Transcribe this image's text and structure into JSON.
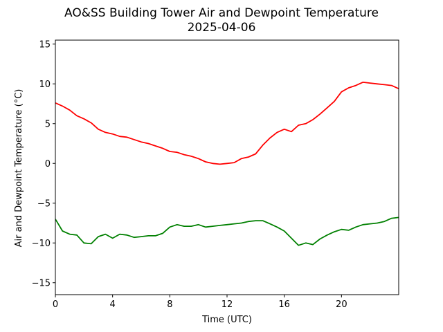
{
  "chart_data": {
    "type": "line",
    "title": "AO&SS Building Tower Air and Dewpoint Temperature",
    "subtitle": "2025-04-06",
    "xlabel": "Time (UTC)",
    "ylabel": "Air and Dewpoint Temperature (°C)",
    "xlim": [
      0,
      24
    ],
    "ylim": [
      -16.5,
      15.5
    ],
    "xticks": [
      0,
      4,
      8,
      12,
      16,
      20
    ],
    "xtick_labels": [
      "0",
      "4",
      "8",
      "12",
      "16",
      "20"
    ],
    "yticks": [
      -15,
      -10,
      -5,
      0,
      5,
      10,
      15
    ],
    "ytick_labels": [
      "−15",
      "−10",
      "−5",
      "0",
      "5",
      "10",
      "15"
    ],
    "grid": false,
    "series": [
      {
        "color": "#ff0000",
        "x": [
          0,
          0.5,
          1,
          1.5,
          2,
          2.5,
          3,
          3.5,
          4,
          4.5,
          5,
          5.5,
          6,
          6.5,
          7,
          7.5,
          8,
          8.5,
          9,
          9.5,
          10,
          10.5,
          11,
          11.5,
          12,
          12.5,
          13,
          13.5,
          14,
          14.5,
          15,
          15.5,
          16,
          16.5,
          17,
          17.5,
          18,
          18.5,
          19,
          19.5,
          20,
          20.5,
          21,
          21.5,
          22,
          22.5,
          23,
          23.5,
          24
        ],
        "y": [
          7.6,
          7.2,
          6.7,
          6.0,
          5.6,
          5.1,
          4.3,
          3.9,
          3.7,
          3.4,
          3.3,
          3.0,
          2.7,
          2.5,
          2.2,
          1.9,
          1.5,
          1.4,
          1.1,
          0.9,
          0.6,
          0.2,
          0.0,
          -0.1,
          0.0,
          0.1,
          0.6,
          0.8,
          1.2,
          2.3,
          3.2,
          3.9,
          4.3,
          4.0,
          4.8,
          5.0,
          5.5,
          6.2,
          7.0,
          7.8,
          9.0,
          9.5,
          9.8,
          10.2,
          10.1,
          10.0,
          9.9,
          9.8,
          9.4
        ]
      },
      {
        "color": "#008000",
        "x": [
          0,
          0.5,
          1,
          1.5,
          2,
          2.5,
          3,
          3.5,
          4,
          4.5,
          5,
          5.5,
          6,
          6.5,
          7,
          7.5,
          8,
          8.5,
          9,
          9.5,
          10,
          10.5,
          11,
          11.5,
          12,
          12.5,
          13,
          13.5,
          14,
          14.5,
          15,
          15.5,
          16,
          16.5,
          17,
          17.5,
          18,
          18.5,
          19,
          19.5,
          20,
          20.5,
          21,
          21.5,
          22,
          22.5,
          23,
          23.5,
          24
        ],
        "y": [
          -7.0,
          -8.5,
          -8.9,
          -9.0,
          -10.0,
          -10.1,
          -9.2,
          -8.9,
          -9.4,
          -8.9,
          -9.0,
          -9.3,
          -9.2,
          -9.1,
          -9.1,
          -8.8,
          -8.0,
          -7.7,
          -7.9,
          -7.9,
          -7.7,
          -8.0,
          -7.9,
          -7.8,
          -7.7,
          -7.6,
          -7.5,
          -7.3,
          -7.2,
          -7.2,
          -7.6,
          -8.0,
          -8.5,
          -9.4,
          -10.3,
          -10.0,
          -10.2,
          -9.5,
          -9.0,
          -8.6,
          -8.3,
          -8.4,
          -8.0,
          -7.7,
          -7.6,
          -7.5,
          -7.3,
          -6.9,
          -6.8
        ]
      }
    ]
  }
}
